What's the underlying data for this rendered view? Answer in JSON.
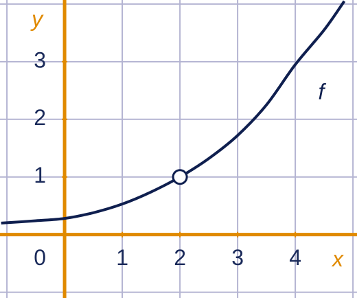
{
  "chart_data": {
    "type": "line",
    "x_label": "x",
    "y_label": "y",
    "origin_label": "0",
    "series": [
      {
        "name": "f",
        "color": "#0f1f4f",
        "x": [
          -1.1,
          -0.5,
          0,
          0.5,
          1,
          1.5,
          2,
          2.5,
          3,
          3.5,
          4,
          4.5,
          4.85
        ],
        "values": [
          0.2,
          0.24,
          0.28,
          0.38,
          0.53,
          0.74,
          1,
          1.32,
          1.72,
          2.25,
          2.95,
          3.55,
          4.05
        ]
      }
    ],
    "points": [
      {
        "x": 2,
        "y": 1
      }
    ],
    "xlim": [
      -1.12,
      5.07
    ],
    "ylim": [
      -1.1,
      4.07
    ],
    "xticks": [
      1,
      2,
      3,
      4
    ],
    "yticks": [
      1,
      2,
      3
    ],
    "grid": true,
    "axis_color": "#e08a00",
    "grid_color": "#b4b4d2",
    "text_color": "#1a2a5a"
  }
}
